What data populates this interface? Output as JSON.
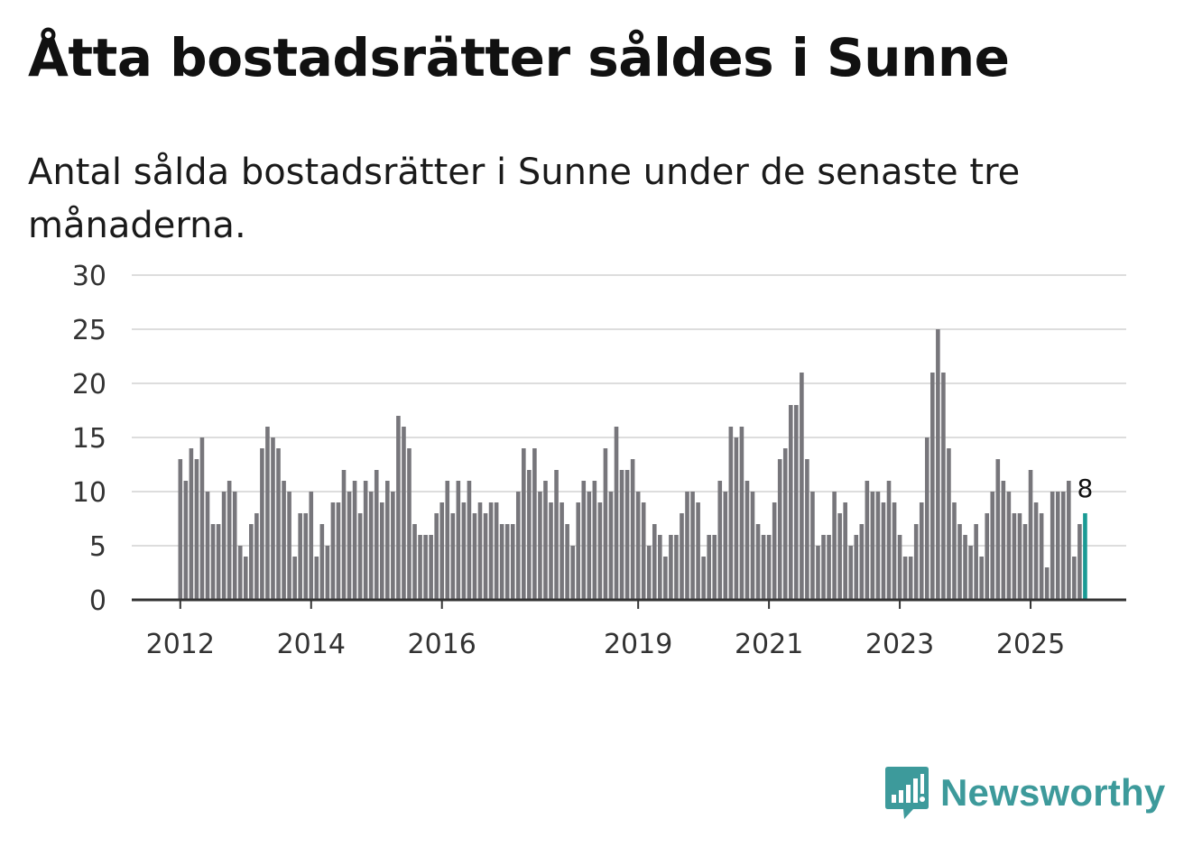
{
  "header": {
    "title": "Åtta bostadsrätter såldes i Sunne",
    "subtitle": "Antal sålda bostadsrätter i Sunne under de senaste tre månaderna."
  },
  "brand": {
    "name": "Newsworthy",
    "icon": "newsworthy-logo-icon"
  },
  "colors": {
    "bar": "#77767b",
    "highlight": "#1a9a94",
    "grid": "#dddddd",
    "axis": "#333333",
    "brand": "#3d9a9b"
  },
  "chart_data": {
    "type": "bar",
    "title": "Åtta bostadsrätter såldes i Sunne",
    "xlabel": "",
    "ylabel": "",
    "ylim": [
      0,
      30
    ],
    "yticks": [
      0,
      5,
      10,
      15,
      20,
      25,
      30
    ],
    "xticks": [
      {
        "label": "2012",
        "index": 0
      },
      {
        "label": "2014",
        "index": 24
      },
      {
        "label": "2016",
        "index": 48
      },
      {
        "label": "2019",
        "index": 84
      },
      {
        "label": "2021",
        "index": 108
      },
      {
        "label": "2023",
        "index": 132
      },
      {
        "label": "2025",
        "index": 156
      }
    ],
    "grid": true,
    "highlight_last": true,
    "last_value_label": "8",
    "values": [
      13,
      11,
      14,
      13,
      15,
      10,
      7,
      7,
      10,
      11,
      10,
      5,
      4,
      7,
      8,
      14,
      16,
      15,
      14,
      11,
      10,
      4,
      8,
      8,
      10,
      4,
      7,
      5,
      9,
      9,
      12,
      10,
      11,
      8,
      11,
      10,
      12,
      9,
      11,
      10,
      17,
      16,
      14,
      7,
      6,
      6,
      6,
      8,
      9,
      11,
      8,
      11,
      9,
      11,
      8,
      9,
      8,
      9,
      9,
      7,
      7,
      7,
      10,
      14,
      12,
      14,
      10,
      11,
      9,
      12,
      9,
      7,
      5,
      9,
      11,
      10,
      11,
      9,
      14,
      10,
      16,
      12,
      12,
      13,
      10,
      9,
      5,
      7,
      6,
      4,
      6,
      6,
      8,
      10,
      10,
      9,
      4,
      6,
      6,
      11,
      10,
      16,
      15,
      16,
      11,
      10,
      7,
      6,
      6,
      9,
      13,
      14,
      18,
      18,
      21,
      13,
      10,
      5,
      6,
      6,
      10,
      8,
      9,
      5,
      6,
      7,
      11,
      10,
      10,
      9,
      11,
      9,
      6,
      4,
      4,
      7,
      9,
      15,
      21,
      25,
      21,
      14,
      9,
      7,
      6,
      5,
      7,
      4,
      8,
      10,
      13,
      11,
      10,
      8,
      8,
      7,
      12,
      9,
      8,
      3,
      10,
      10,
      10,
      11,
      4,
      7,
      8
    ]
  }
}
